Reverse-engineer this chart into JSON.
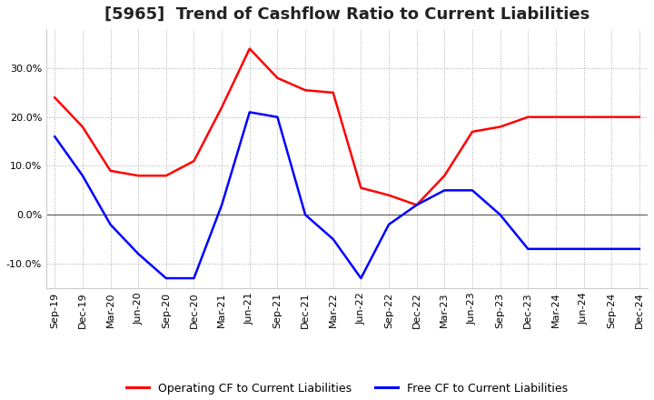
{
  "title": "[5965]  Trend of Cashflow Ratio to Current Liabilities",
  "x_labels": [
    "Sep-19",
    "Dec-19",
    "Mar-20",
    "Jun-20",
    "Sep-20",
    "Dec-20",
    "Mar-21",
    "Jun-21",
    "Sep-21",
    "Dec-21",
    "Mar-22",
    "Jun-22",
    "Sep-22",
    "Dec-22",
    "Mar-23",
    "Jun-23",
    "Sep-23",
    "Dec-23",
    "Mar-24",
    "Jun-24",
    "Sep-24",
    "Dec-24"
  ],
  "operating_cf": [
    24.0,
    18.0,
    9.0,
    8.0,
    8.0,
    11.0,
    22.0,
    34.0,
    28.0,
    25.5,
    25.0,
    5.5,
    4.0,
    2.0,
    8.0,
    17.0,
    18.0,
    20.0,
    20.0,
    20.0,
    20.0,
    20.0
  ],
  "free_cf": [
    16.0,
    8.0,
    -2.0,
    -8.0,
    -13.0,
    -13.0,
    2.0,
    21.0,
    20.0,
    0.0,
    -5.0,
    -13.0,
    -2.0,
    2.0,
    5.0,
    5.0,
    0.0,
    -7.0,
    -7.0,
    -7.0,
    -7.0,
    -7.0
  ],
  "operating_color": "#ff0000",
  "free_color": "#0000ff",
  "ylim": [
    -15,
    38
  ],
  "yticks": [
    -10.0,
    0.0,
    10.0,
    20.0,
    30.0
  ],
  "background_color": "#ffffff",
  "grid_color": "#aaaaaa",
  "title_fontsize": 13,
  "legend_fontsize": 9,
  "tick_fontsize": 8
}
